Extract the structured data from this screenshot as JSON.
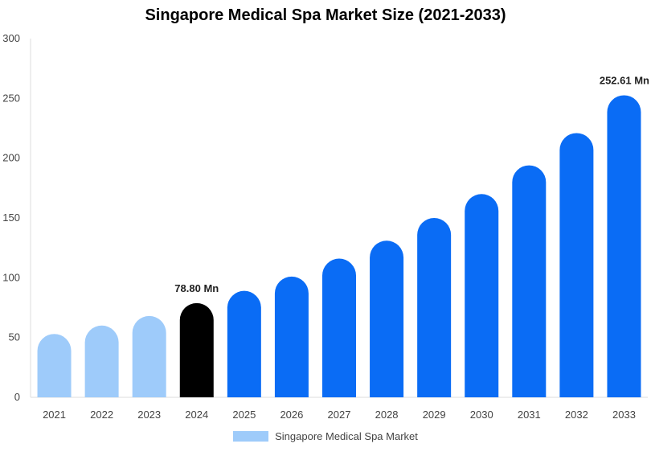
{
  "chart_data": {
    "type": "bar",
    "title": "Singapore Medical Spa Market Size (2021-2033)",
    "categories": [
      "2021",
      "2022",
      "2023",
      "2024",
      "2025",
      "2026",
      "2027",
      "2028",
      "2029",
      "2030",
      "2031",
      "2032",
      "2033"
    ],
    "series": [
      {
        "name": "Singapore Medical Spa Market",
        "values": [
          53,
          60,
          68,
          78.8,
          89,
          101,
          116,
          131,
          150,
          170,
          194,
          221,
          252.61
        ]
      }
    ],
    "ylim": [
      0,
      300
    ],
    "yticks": [
      0,
      50,
      100,
      150,
      200,
      250,
      300
    ],
    "grid": false,
    "legend_position": "bottom",
    "data_labels": [
      {
        "category": "2024",
        "text": "78.80 Mn"
      },
      {
        "category": "2033",
        "text": "252.61 Mn"
      }
    ],
    "colors": {
      "historical": "#9ecbfa",
      "current": "#000000",
      "forecast": "#0a6cf5",
      "legend_swatch": "#9ecbfa"
    },
    "bar_color_keys": [
      "historical",
      "historical",
      "historical",
      "current",
      "forecast",
      "forecast",
      "forecast",
      "forecast",
      "forecast",
      "forecast",
      "forecast",
      "forecast",
      "forecast"
    ]
  }
}
